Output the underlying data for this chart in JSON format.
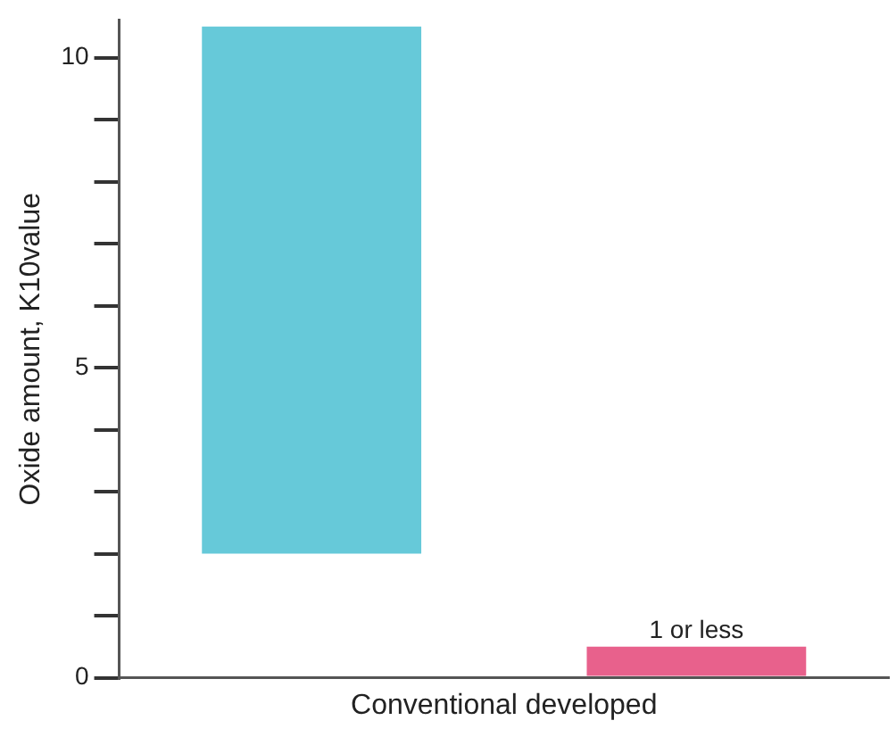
{
  "chart_data": {
    "type": "bar",
    "ylabel": "Oxide amount, K10value",
    "xlabel": "Conventional developed",
    "categories": [
      null,
      null
    ],
    "base": [
      2,
      0
    ],
    "values": [
      8.5,
      0.5
    ],
    "colors": [
      "#66c9d9",
      "#e8618c"
    ],
    "value_labels": [
      null,
      "1 or less"
    ],
    "ylim": [
      0,
      10.6
    ],
    "yticks": [
      0,
      {
        "value": 1,
        "label": null
      },
      {
        "value": 2,
        "label": null
      },
      {
        "value": 3,
        "label": null
      },
      {
        "value": 4,
        "label": null
      },
      5,
      {
        "value": 6,
        "label": null
      },
      {
        "value": 7,
        "label": null
      },
      {
        "value": 8,
        "label": null
      },
      {
        "value": 9,
        "label": null
      },
      10
    ],
    "tick_labels": "y",
    "grid": false,
    "legend": false
  }
}
